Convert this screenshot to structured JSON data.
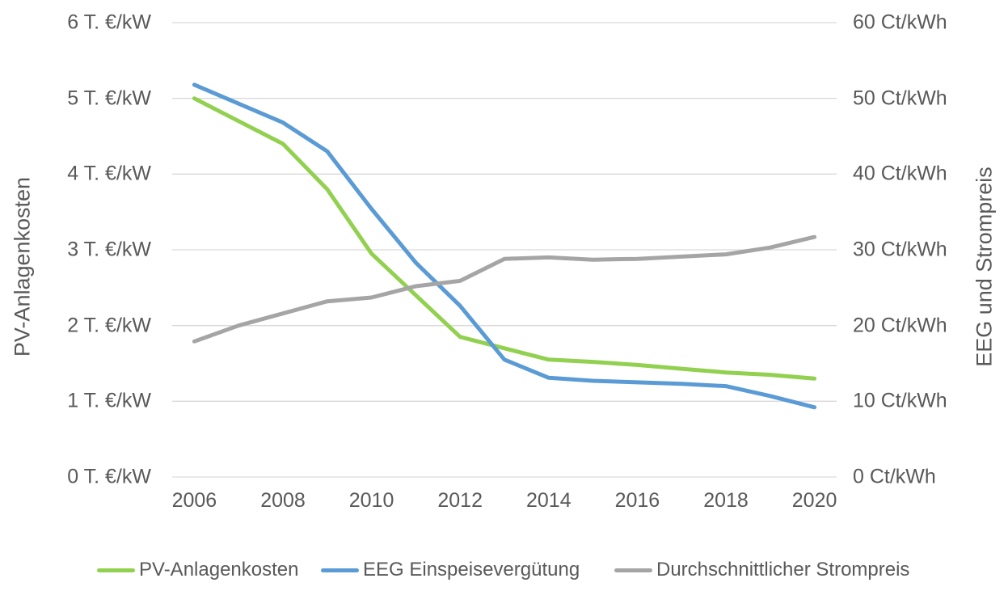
{
  "text_color": "#595959",
  "gridline_color": "#D9D9D9",
  "background_color": "#FFFFFF",
  "chart_data": {
    "type": "line",
    "title": "",
    "x": [
      2006,
      2007,
      2008,
      2009,
      2010,
      2011,
      2012,
      2013,
      2014,
      2015,
      2016,
      2017,
      2018,
      2019,
      2020
    ],
    "x_tick_labels": [
      "2006",
      "2008",
      "2010",
      "2012",
      "2014",
      "2016",
      "2018",
      "2020"
    ],
    "left_axis": {
      "title": "PV-Anlagenkosten",
      "unit": "T. €/kW",
      "min": 0,
      "max": 6,
      "step": 1,
      "tick_labels": [
        "6 T. €/kW",
        "5 T. €/kW",
        "4 T. €/kW",
        "3 T. €/kW",
        "2 T. €/kW",
        "1 T. €/kW",
        "0 T. €/kW"
      ]
    },
    "right_axis": {
      "title": "EEG und Strompreis",
      "unit": "Ct/kWh",
      "min": 0,
      "max": 60,
      "step": 10,
      "tick_labels": [
        "60 Ct/kWh",
        "50 Ct/kWh",
        "40 Ct/kWh",
        "30 Ct/kWh",
        "20 Ct/kWh",
        "10 Ct/kWh",
        "0 Ct/kWh"
      ]
    },
    "grid": "horizontal",
    "legend_position": "bottom",
    "series": [
      {
        "name": "PV-Anlagenkosten",
        "axis": "left",
        "color": "#92D050",
        "values": [
          5.0,
          4.7,
          4.4,
          3.8,
          2.95,
          2.4,
          1.85,
          1.7,
          1.55,
          1.52,
          1.48,
          1.43,
          1.38,
          1.35,
          1.3
        ]
      },
      {
        "name": "EEG Einspeisevergütung",
        "axis": "right",
        "color": "#5B9BD5",
        "values": [
          51.8,
          49.3,
          46.8,
          43.0,
          35.4,
          28.3,
          22.6,
          15.5,
          13.1,
          12.7,
          12.5,
          12.3,
          12.0,
          10.7,
          9.2
        ]
      },
      {
        "name": "Durchschnittlicher Strompreis",
        "axis": "right",
        "color": "#A5A5A5",
        "values": [
          17.9,
          20.0,
          21.6,
          23.2,
          23.7,
          25.2,
          25.9,
          28.8,
          29.0,
          28.7,
          28.8,
          29.1,
          29.4,
          30.3,
          31.7
        ]
      }
    ]
  }
}
